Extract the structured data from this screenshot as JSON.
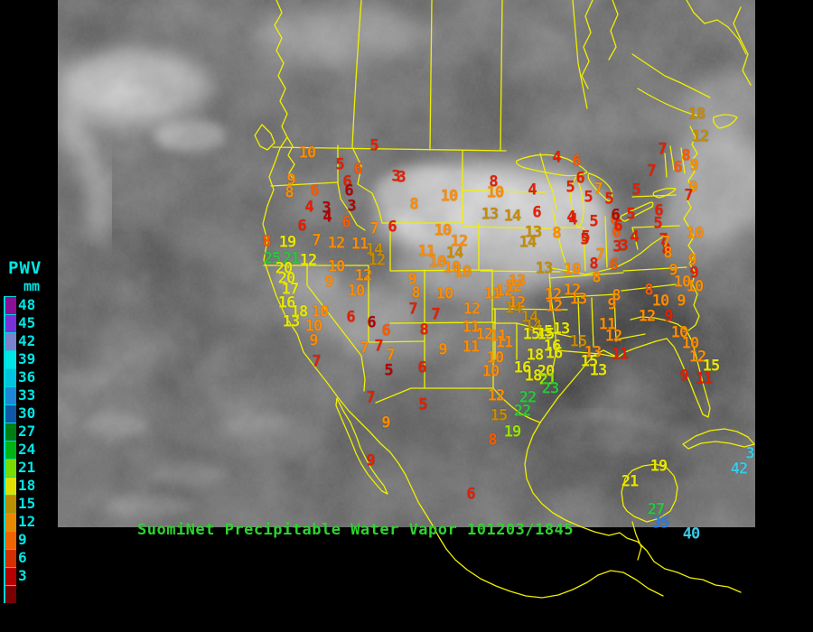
{
  "caption": {
    "text": "SuomiNet Precipitable Water Vapor 101203/1845",
    "color": "#2ed32e"
  },
  "legend": {
    "title": "PWV",
    "unit": "mm",
    "label_color": "#00e6e6",
    "rows": [
      {
        "value": "48",
        "color": "#8c0f96"
      },
      {
        "value": "45",
        "color": "#7a32d8"
      },
      {
        "value": "42",
        "color": "#7d82cd"
      },
      {
        "value": "39",
        "color": "#00e6e6"
      },
      {
        "value": "36",
        "color": "#00c3e0"
      },
      {
        "value": "33",
        "color": "#1e87d8"
      },
      {
        "value": "30",
        "color": "#1057a8"
      },
      {
        "value": "27",
        "color": "#007d14"
      },
      {
        "value": "24",
        "color": "#00b414"
      },
      {
        "value": "21",
        "color": "#78dc00"
      },
      {
        "value": "18",
        "color": "#e0e000"
      },
      {
        "value": "15",
        "color": "#b98e00"
      },
      {
        "value": "12",
        "color": "#e68a00"
      },
      {
        "value": "9",
        "color": "#f06400"
      },
      {
        "value": "6",
        "color": "#d23000"
      },
      {
        "value": "3",
        "color": "#b40000"
      }
    ],
    "extra_swatch_color": "#780000"
  },
  "colors": {
    "boundary": "#f0f000",
    "background": "#000000"
  },
  "palette": {
    "dr": "#b40000",
    "r": "#e61e00",
    "or": "#fa5a00",
    "o": "#ff8c00",
    "db": "#c88c00",
    "y": "#e8e800",
    "yg": "#96e600",
    "g": "#28c83c",
    "b": "#2d7de6",
    "c": "#3cc8e6"
  },
  "stations": [
    [
      340,
      170,
      "10",
      "o"
    ],
    [
      414,
      162,
      "5",
      "r"
    ],
    [
      376,
      183,
      "5",
      "r"
    ],
    [
      396,
      188,
      "6",
      "or"
    ],
    [
      322,
      200,
      "9",
      "o"
    ],
    [
      438,
      196,
      "3",
      "r"
    ],
    [
      348,
      212,
      "6",
      "or"
    ],
    [
      320,
      214,
      "8",
      "o"
    ],
    [
      384,
      202,
      "6",
      "r"
    ],
    [
      386,
      212,
      "6",
      "dr"
    ],
    [
      342,
      230,
      "4",
      "r"
    ],
    [
      361,
      231,
      "3",
      "dr"
    ],
    [
      362,
      241,
      "4",
      "dr"
    ],
    [
      389,
      229,
      "3",
      "dr"
    ],
    [
      383,
      247,
      "6",
      "or"
    ],
    [
      334,
      251,
      "6",
      "r"
    ],
    [
      414,
      254,
      "7",
      "o"
    ],
    [
      434,
      252,
      "6",
      "r"
    ],
    [
      458,
      227,
      "8",
      "o"
    ],
    [
      295,
      268,
      "8",
      "or"
    ],
    [
      318,
      269,
      "19",
      "y"
    ],
    [
      301,
      287,
      "25",
      "g"
    ],
    [
      322,
      287,
      "21",
      "g"
    ],
    [
      341,
      289,
      "12",
      "y"
    ],
    [
      350,
      267,
      "7",
      "o"
    ],
    [
      372,
      270,
      "12",
      "o"
    ],
    [
      398,
      271,
      "11",
      "o"
    ],
    [
      414,
      277,
      "14",
      "db"
    ],
    [
      417,
      289,
      "12",
      "db"
    ],
    [
      314,
      298,
      "20",
      "y"
    ],
    [
      372,
      296,
      "10",
      "o"
    ],
    [
      317,
      309,
      "20",
      "y"
    ],
    [
      364,
      313,
      "9",
      "o"
    ],
    [
      402,
      306,
      "12",
      "o"
    ],
    [
      321,
      321,
      "17",
      "y"
    ],
    [
      394,
      323,
      "10",
      "o"
    ],
    [
      317,
      336,
      "16",
      "y"
    ],
    [
      331,
      346,
      "18",
      "y"
    ],
    [
      354,
      346,
      "10",
      "o"
    ],
    [
      322,
      357,
      "13",
      "y"
    ],
    [
      347,
      362,
      "10",
      "o"
    ],
    [
      388,
      352,
      "6",
      "r"
    ],
    [
      411,
      358,
      "6",
      "dr"
    ],
    [
      427,
      367,
      "6",
      "or"
    ],
    [
      347,
      378,
      "9",
      "o"
    ],
    [
      403,
      386,
      "7",
      "o"
    ],
    [
      419,
      384,
      "7",
      "r"
    ],
    [
      432,
      394,
      "7",
      "o"
    ],
    [
      350,
      401,
      "7",
      "r"
    ],
    [
      444,
      197,
      "3",
      "r"
    ],
    [
      546,
      202,
      "8",
      "r"
    ],
    [
      497,
      218,
      "10",
      "o"
    ],
    [
      548,
      214,
      "10",
      "o"
    ],
    [
      542,
      238,
      "13",
      "db"
    ],
    [
      567,
      240,
      "14",
      "db"
    ],
    [
      490,
      256,
      "10",
      "o"
    ],
    [
      508,
      268,
      "12",
      "o"
    ],
    [
      472,
      279,
      "11",
      "o"
    ],
    [
      503,
      281,
      "14",
      "db"
    ],
    [
      484,
      291,
      "10",
      "o"
    ],
    [
      500,
      297,
      "10",
      "o"
    ],
    [
      512,
      302,
      "10",
      "o"
    ],
    [
      456,
      310,
      "9",
      "o"
    ],
    [
      460,
      325,
      "8",
      "o"
    ],
    [
      568,
      318,
      "12",
      "o"
    ],
    [
      572,
      312,
      "13",
      "o"
    ],
    [
      616,
      175,
      "4",
      "r"
    ],
    [
      638,
      179,
      "6",
      "or"
    ],
    [
      589,
      211,
      "4",
      "r"
    ],
    [
      642,
      198,
      "6",
      "r"
    ],
    [
      631,
      208,
      "5",
      "r"
    ],
    [
      662,
      210,
      "7",
      "o"
    ],
    [
      651,
      219,
      "5",
      "r"
    ],
    [
      674,
      221,
      "5",
      "r"
    ],
    [
      594,
      236,
      "6",
      "r"
    ],
    [
      632,
      241,
      "4",
      "r"
    ],
    [
      680,
      244,
      "6",
      "or"
    ],
    [
      590,
      258,
      "13",
      "db"
    ],
    [
      616,
      259,
      "8",
      "o"
    ],
    [
      584,
      269,
      "14",
      "db"
    ],
    [
      647,
      266,
      "5",
      "r"
    ],
    [
      682,
      258,
      "6",
      "or"
    ],
    [
      771,
      127,
      "18",
      "db"
    ],
    [
      775,
      152,
      "12",
      "db"
    ],
    [
      733,
      166,
      "7",
      "r"
    ],
    [
      759,
      173,
      "8",
      "or"
    ],
    [
      750,
      186,
      "6",
      "or"
    ],
    [
      768,
      184,
      "9",
      "o"
    ],
    [
      721,
      190,
      "7",
      "r"
    ],
    [
      704,
      211,
      "5",
      "r"
    ],
    [
      767,
      208,
      "9",
      "o"
    ],
    [
      762,
      217,
      "7",
      "r"
    ],
    [
      698,
      238,
      "5",
      "r"
    ],
    [
      729,
      234,
      "6",
      "r"
    ],
    [
      728,
      248,
      "5",
      "r"
    ],
    [
      702,
      263,
      "4",
      "r"
    ],
    [
      690,
      273,
      "3",
      "r"
    ],
    [
      734,
      266,
      "7",
      "r"
    ],
    [
      737,
      277,
      "8",
      "r"
    ],
    [
      769,
      259,
      "10",
      "o"
    ],
    [
      766,
      289,
      "9",
      "o"
    ],
    [
      768,
      303,
      "9",
      "r"
    ],
    [
      769,
      318,
      "10",
      "o"
    ],
    [
      681,
      239,
      "6",
      "dr"
    ],
    [
      684,
      251,
      "6",
      "r"
    ],
    [
      634,
      244,
      "4",
      "r"
    ],
    [
      657,
      246,
      "5",
      "r"
    ],
    [
      648,
      263,
      "5",
      "r"
    ],
    [
      683,
      274,
      "3",
      "r"
    ],
    [
      737,
      269,
      "7",
      "o"
    ],
    [
      739,
      281,
      "8",
      "o"
    ],
    [
      664,
      283,
      "7",
      "o"
    ],
    [
      657,
      293,
      "8",
      "r"
    ],
    [
      679,
      294,
      "6",
      "or"
    ],
    [
      602,
      298,
      "13",
      "db"
    ],
    [
      633,
      299,
      "10",
      "o"
    ],
    [
      660,
      308,
      "8",
      "o"
    ],
    [
      612,
      327,
      "12",
      "o"
    ],
    [
      633,
      322,
      "12",
      "o"
    ],
    [
      640,
      332,
      "13",
      "o"
    ],
    [
      677,
      338,
      "9",
      "o"
    ],
    [
      682,
      328,
      "8",
      "o"
    ],
    [
      718,
      322,
      "8",
      "or"
    ],
    [
      745,
      300,
      "9",
      "o"
    ],
    [
      755,
      313,
      "10",
      "o"
    ],
    [
      731,
      334,
      "10",
      "o"
    ],
    [
      754,
      334,
      "9",
      "o"
    ],
    [
      716,
      351,
      "12",
      "o"
    ],
    [
      740,
      351,
      "9",
      "r"
    ],
    [
      672,
      360,
      "11",
      "o"
    ],
    [
      602,
      368,
      "15",
      "y"
    ],
    [
      621,
      365,
      "13",
      "y"
    ],
    [
      679,
      373,
      "12",
      "o"
    ],
    [
      640,
      379,
      "15",
      "db"
    ],
    [
      752,
      369,
      "10",
      "o"
    ],
    [
      764,
      381,
      "10",
      "o"
    ],
    [
      611,
      384,
      "16",
      "y"
    ],
    [
      656,
      391,
      "13",
      "o"
    ],
    [
      686,
      393,
      "11",
      "r"
    ],
    [
      652,
      401,
      "15",
      "y"
    ],
    [
      772,
      396,
      "12",
      "o"
    ],
    [
      787,
      406,
      "15",
      "y"
    ],
    [
      662,
      411,
      "13",
      "y"
    ],
    [
      757,
      417,
      "9",
      "r"
    ],
    [
      779,
      420,
      "11",
      "r"
    ],
    [
      492,
      326,
      "10",
      "o"
    ],
    [
      457,
      343,
      "7",
      "r"
    ],
    [
      482,
      349,
      "7",
      "r"
    ],
    [
      522,
      343,
      "12",
      "o"
    ],
    [
      545,
      326,
      "11",
      "o"
    ],
    [
      558,
      323,
      "12",
      "o"
    ],
    [
      572,
      336,
      "12",
      "o"
    ],
    [
      568,
      342,
      "14",
      "db"
    ],
    [
      586,
      352,
      "14",
      "db"
    ],
    [
      590,
      362,
      "14",
      "db"
    ],
    [
      613,
      340,
      "12",
      "o"
    ],
    [
      469,
      366,
      "8",
      "r"
    ],
    [
      521,
      363,
      "11",
      "o"
    ],
    [
      536,
      371,
      "12",
      "o"
    ],
    [
      551,
      373,
      "11",
      "o"
    ],
    [
      558,
      380,
      "11",
      "o"
    ],
    [
      588,
      371,
      "15",
      "y"
    ],
    [
      604,
      371,
      "15",
      "y"
    ],
    [
      490,
      388,
      "9",
      "o"
    ],
    [
      521,
      385,
      "11",
      "o"
    ],
    [
      548,
      397,
      "10",
      "o"
    ],
    [
      543,
      412,
      "10",
      "o"
    ],
    [
      578,
      408,
      "16",
      "y"
    ],
    [
      592,
      394,
      "18",
      "y"
    ],
    [
      590,
      417,
      "18",
      "y"
    ],
    [
      604,
      412,
      "20",
      "y"
    ],
    [
      613,
      392,
      "16",
      "y"
    ],
    [
      467,
      408,
      "6",
      "r"
    ],
    [
      606,
      421,
      "21",
      "yg"
    ],
    [
      609,
      431,
      "23",
      "g"
    ],
    [
      584,
      441,
      "22",
      "g"
    ],
    [
      578,
      456,
      "22",
      "g"
    ],
    [
      549,
      439,
      "12",
      "o"
    ],
    [
      430,
      411,
      "5",
      "dr"
    ],
    [
      552,
      461,
      "15",
      "db"
    ],
    [
      567,
      479,
      "19",
      "yg"
    ],
    [
      545,
      488,
      "8",
      "or"
    ],
    [
      468,
      449,
      "5",
      "r"
    ],
    [
      410,
      441,
      "7",
      "r"
    ],
    [
      427,
      469,
      "9",
      "o"
    ],
    [
      410,
      511,
      "9",
      "r"
    ],
    [
      521,
      548,
      "6",
      "r"
    ],
    [
      729,
      517,
      "19",
      "y"
    ],
    [
      697,
      534,
      "21",
      "y"
    ],
    [
      818,
      520,
      "42",
      "c"
    ],
    [
      830,
      503,
      "3",
      "c"
    ],
    [
      726,
      565,
      "27",
      "g"
    ],
    [
      731,
      580,
      "35",
      "b"
    ],
    [
      765,
      592,
      "40",
      "c"
    ]
  ]
}
